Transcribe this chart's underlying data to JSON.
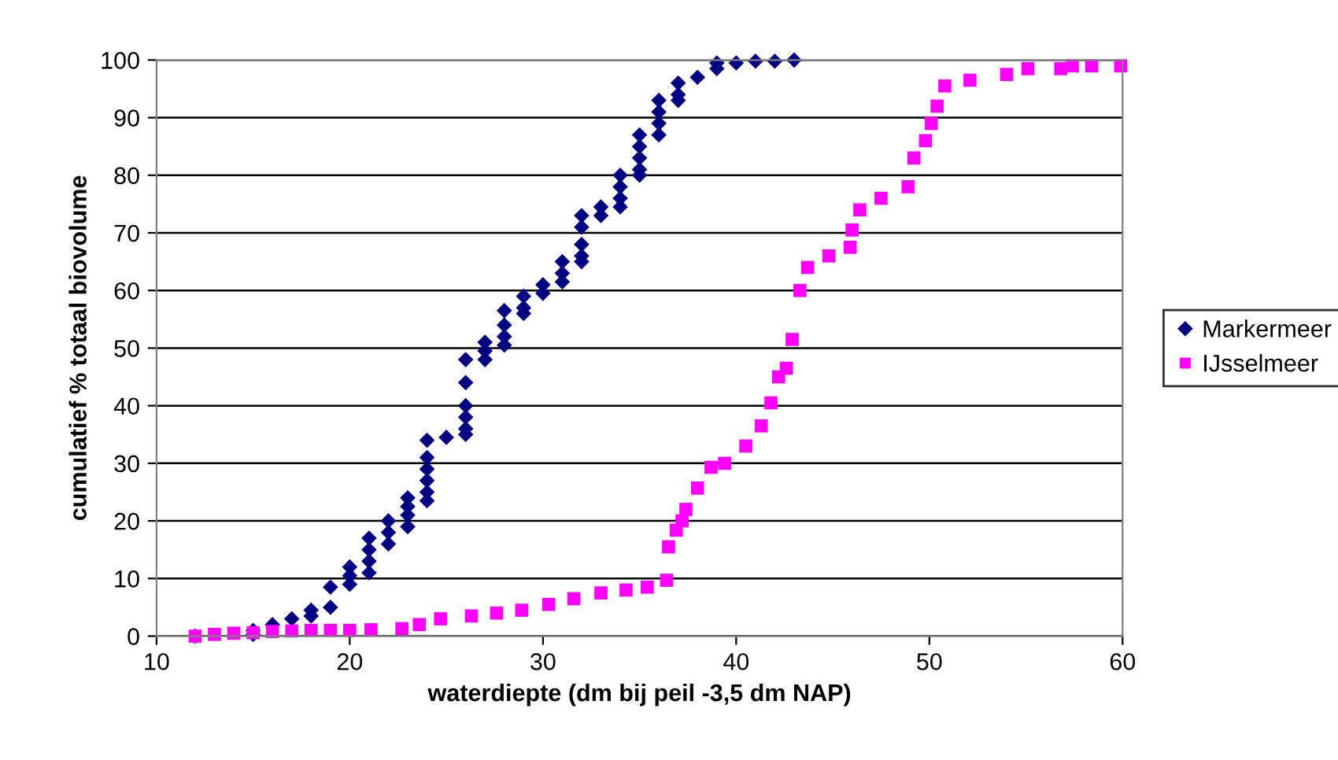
{
  "chart_data": {
    "type": "scatter",
    "xlabel": "waterdiepte (dm bij peil -3,5 dm NAP)",
    "ylabel": "cumulatief % totaal biovolume",
    "xlim": [
      10,
      60
    ],
    "xticks": [
      10,
      20,
      30,
      40,
      50,
      60
    ],
    "ylim": [
      0,
      100
    ],
    "yticks": [
      0,
      10,
      20,
      30,
      40,
      50,
      60,
      70,
      80,
      90,
      100
    ],
    "grid": "y",
    "legend": "right",
    "series": [
      {
        "name": "Markermeer",
        "color": "#000080",
        "marker": "diamond",
        "x": [
          12,
          15,
          15,
          16,
          17,
          18,
          18,
          19,
          19,
          20,
          20,
          20,
          21,
          21,
          21,
          21,
          22,
          22,
          22,
          23,
          23,
          23,
          23,
          24,
          24,
          24,
          24,
          24,
          24,
          25,
          26,
          26,
          26,
          26,
          26,
          26,
          27,
          27,
          27,
          28,
          28,
          28,
          28,
          29,
          29,
          29,
          30,
          30,
          31,
          31,
          31,
          32,
          32,
          32,
          32,
          32,
          33,
          33,
          34,
          34,
          34,
          34,
          35,
          35,
          35,
          35,
          35,
          36,
          36,
          36,
          36,
          37,
          37,
          37,
          38,
          39,
          39,
          40,
          41,
          42,
          43
        ],
        "values": [
          0,
          0.3,
          1,
          2,
          3,
          3.5,
          4.5,
          5,
          8.5,
          9,
          10.5,
          12,
          11,
          13,
          15,
          17,
          16,
          18,
          20,
          19,
          21,
          22.5,
          24,
          23.5,
          25,
          27,
          29,
          31,
          34,
          34.5,
          35,
          36,
          38,
          40,
          44,
          48,
          48,
          49.5,
          51,
          50.5,
          52,
          54,
          56.5,
          56,
          57,
          59,
          59.5,
          61,
          61.5,
          63,
          65,
          65,
          66,
          68,
          71,
          73,
          73,
          74.5,
          74.5,
          76,
          78,
          80,
          80,
          81,
          83,
          85,
          87,
          87,
          89,
          91,
          93,
          93,
          94,
          96,
          97,
          98.5,
          99.5,
          99.5,
          99.8,
          99.8,
          100
        ]
      },
      {
        "name": "IJsselmeer",
        "color": "#ff00ff",
        "marker": "square",
        "x": [
          12,
          13,
          14,
          15,
          16,
          17,
          18,
          19,
          20,
          21.1,
          22.7,
          23.6,
          24.7,
          26.3,
          27.6,
          28.9,
          30.3,
          31.6,
          33,
          34.3,
          35.4,
          36.4,
          36.5,
          36.9,
          37.2,
          37.4,
          38,
          38.7,
          39.4,
          40.5,
          41.3,
          41.8,
          42.2,
          42.6,
          42.9,
          43.3,
          43.7,
          44.8,
          45.9,
          46,
          46.4,
          47.5,
          48.9,
          49.2,
          49.8,
          50.1,
          50.4,
          50.8,
          52.1,
          54,
          55.1,
          56.8,
          57.4,
          58.4,
          59.9
        ],
        "values": [
          0,
          0.3,
          0.5,
          0.6,
          0.8,
          0.9,
          1,
          1,
          1,
          1.1,
          1.3,
          2,
          3,
          3.5,
          4,
          4.5,
          5.5,
          6.5,
          7.5,
          8,
          8.5,
          9.7,
          15.5,
          18.4,
          20,
          22,
          25.7,
          29.3,
          30,
          33,
          36.5,
          40.5,
          45,
          46.5,
          51.5,
          60,
          64,
          66,
          67.5,
          70.5,
          74,
          76,
          78,
          83,
          86,
          89,
          92,
          95.5,
          96.5,
          97.5,
          98.5,
          98.5,
          99,
          99,
          99
        ]
      }
    ]
  }
}
